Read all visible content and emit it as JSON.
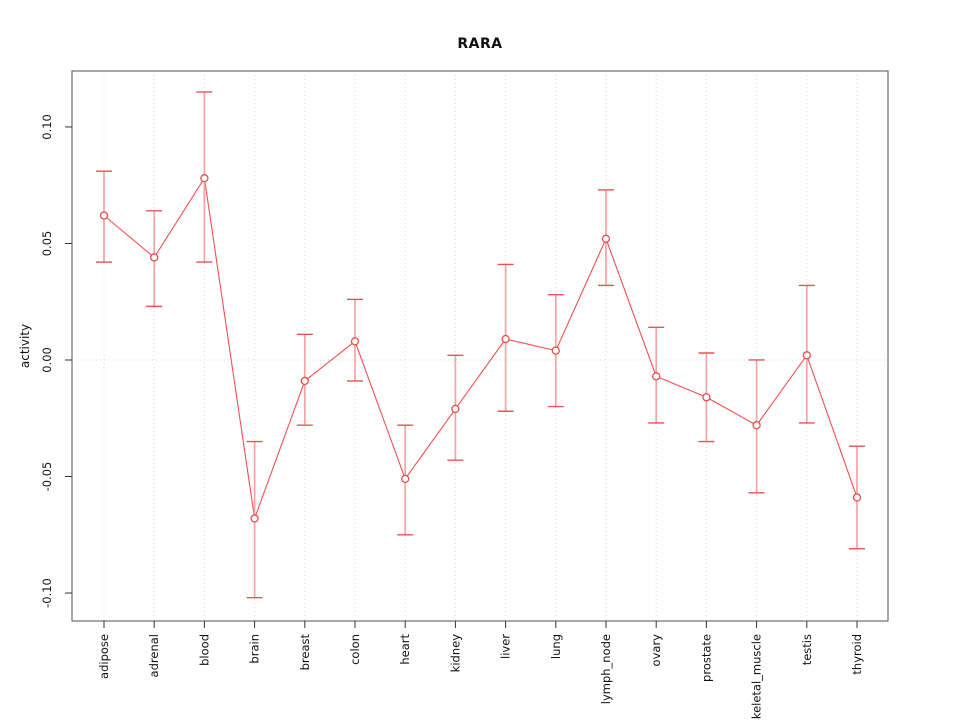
{
  "chart_data": {
    "type": "line",
    "title": "RARA",
    "xlabel": "",
    "ylabel": "activity",
    "categories": [
      "adipose",
      "adrenal",
      "blood",
      "brain",
      "breast",
      "colon",
      "heart",
      "kidney",
      "liver",
      "lung",
      "lymph_node",
      "ovary",
      "prostate",
      "skeletal_muscle",
      "testis",
      "thyroid"
    ],
    "series": [
      {
        "name": "activity",
        "values": [
          0.062,
          0.044,
          0.078,
          -0.068,
          -0.009,
          0.008,
          -0.051,
          -0.021,
          0.009,
          0.004,
          0.052,
          -0.007,
          -0.016,
          -0.028,
          0.002,
          -0.059
        ],
        "error_high": [
          0.081,
          0.064,
          0.115,
          -0.035,
          0.011,
          0.026,
          -0.028,
          0.002,
          0.041,
          0.028,
          0.073,
          0.014,
          0.003,
          0.0,
          0.032,
          -0.037
        ],
        "error_low": [
          0.042,
          0.023,
          0.042,
          -0.102,
          -0.028,
          -0.009,
          -0.075,
          -0.043,
          -0.022,
          -0.02,
          0.032,
          -0.027,
          -0.035,
          -0.057,
          -0.027,
          -0.081
        ]
      }
    ],
    "yticks": [
      -0.1,
      -0.05,
      0.0,
      0.05,
      0.1
    ],
    "ytick_labels": [
      "-0.10",
      "-0.05",
      "0.00",
      "0.05",
      "0.10"
    ],
    "ylim": [
      -0.112,
      0.124
    ],
    "grid": {
      "vertical": "dotted at each category",
      "horizontal": "dotted at 0 only"
    },
    "legend": "none",
    "marker": "open-circle",
    "colors": {
      "series_line": "#f25050",
      "point_stroke": "#e84c4c",
      "errorbar_line": "#f5a3a3",
      "errorbar_cap": "#e85252",
      "gridline": "#d9d9d9",
      "box": "#6e6e6e",
      "tick": "#333333",
      "text": "#111111",
      "background": "#ffffff"
    }
  }
}
